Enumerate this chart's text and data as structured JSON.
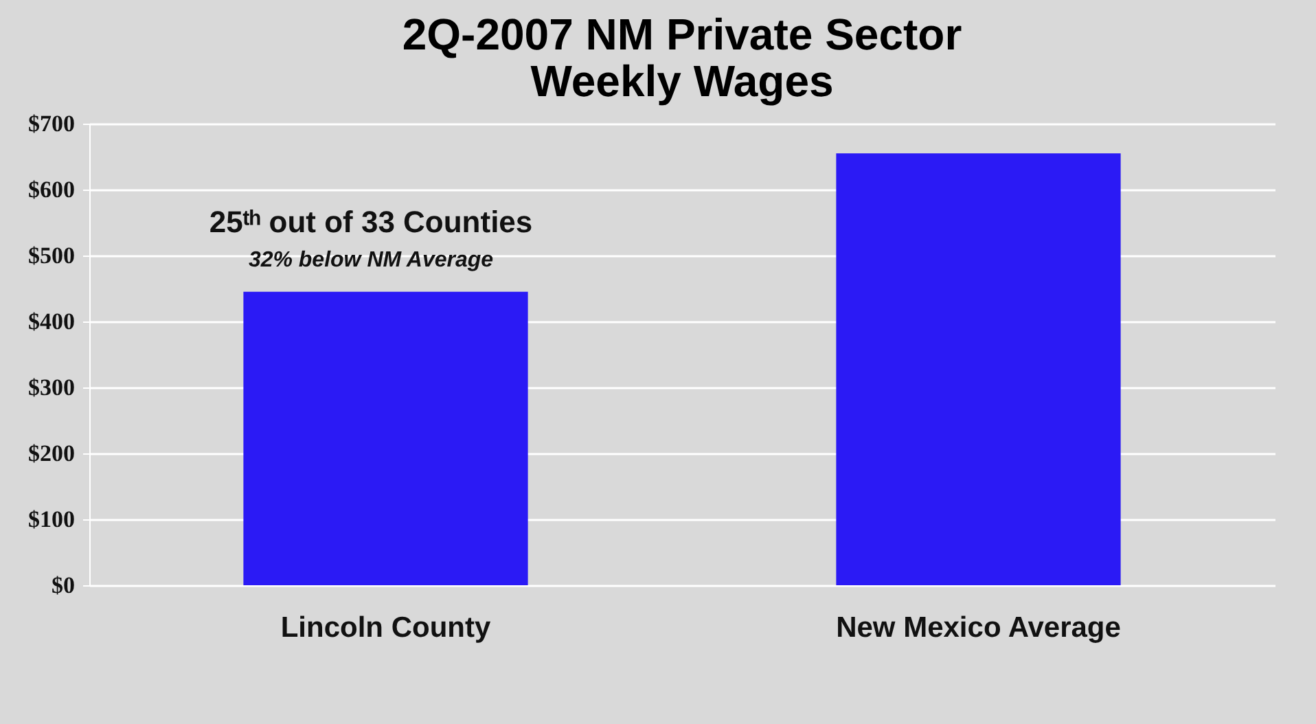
{
  "chart_data": {
    "type": "bar",
    "title": "2Q-2007 NM Private Sector Weekly Wages",
    "categories": [
      "Lincoln County",
      "New Mexico Average"
    ],
    "series": [
      {
        "color": "#2b1af5",
        "values": [
          445,
          655
        ]
      }
    ],
    "ylim": [
      0,
      700
    ],
    "yticks": [
      {
        "value": 0,
        "label": "$0"
      },
      {
        "value": 100,
        "label": "$100"
      },
      {
        "value": 200,
        "label": "$200"
      },
      {
        "value": 300,
        "label": "$300"
      },
      {
        "value": 400,
        "label": "$400"
      },
      {
        "value": 500,
        "label": "$500"
      },
      {
        "value": 600,
        "label": "$600"
      },
      {
        "value": 700,
        "label": "$700"
      }
    ],
    "grid": "y",
    "annotations": [
      "25ᵗʰ out of 33 Counties",
      "32% below  NM Average"
    ]
  }
}
